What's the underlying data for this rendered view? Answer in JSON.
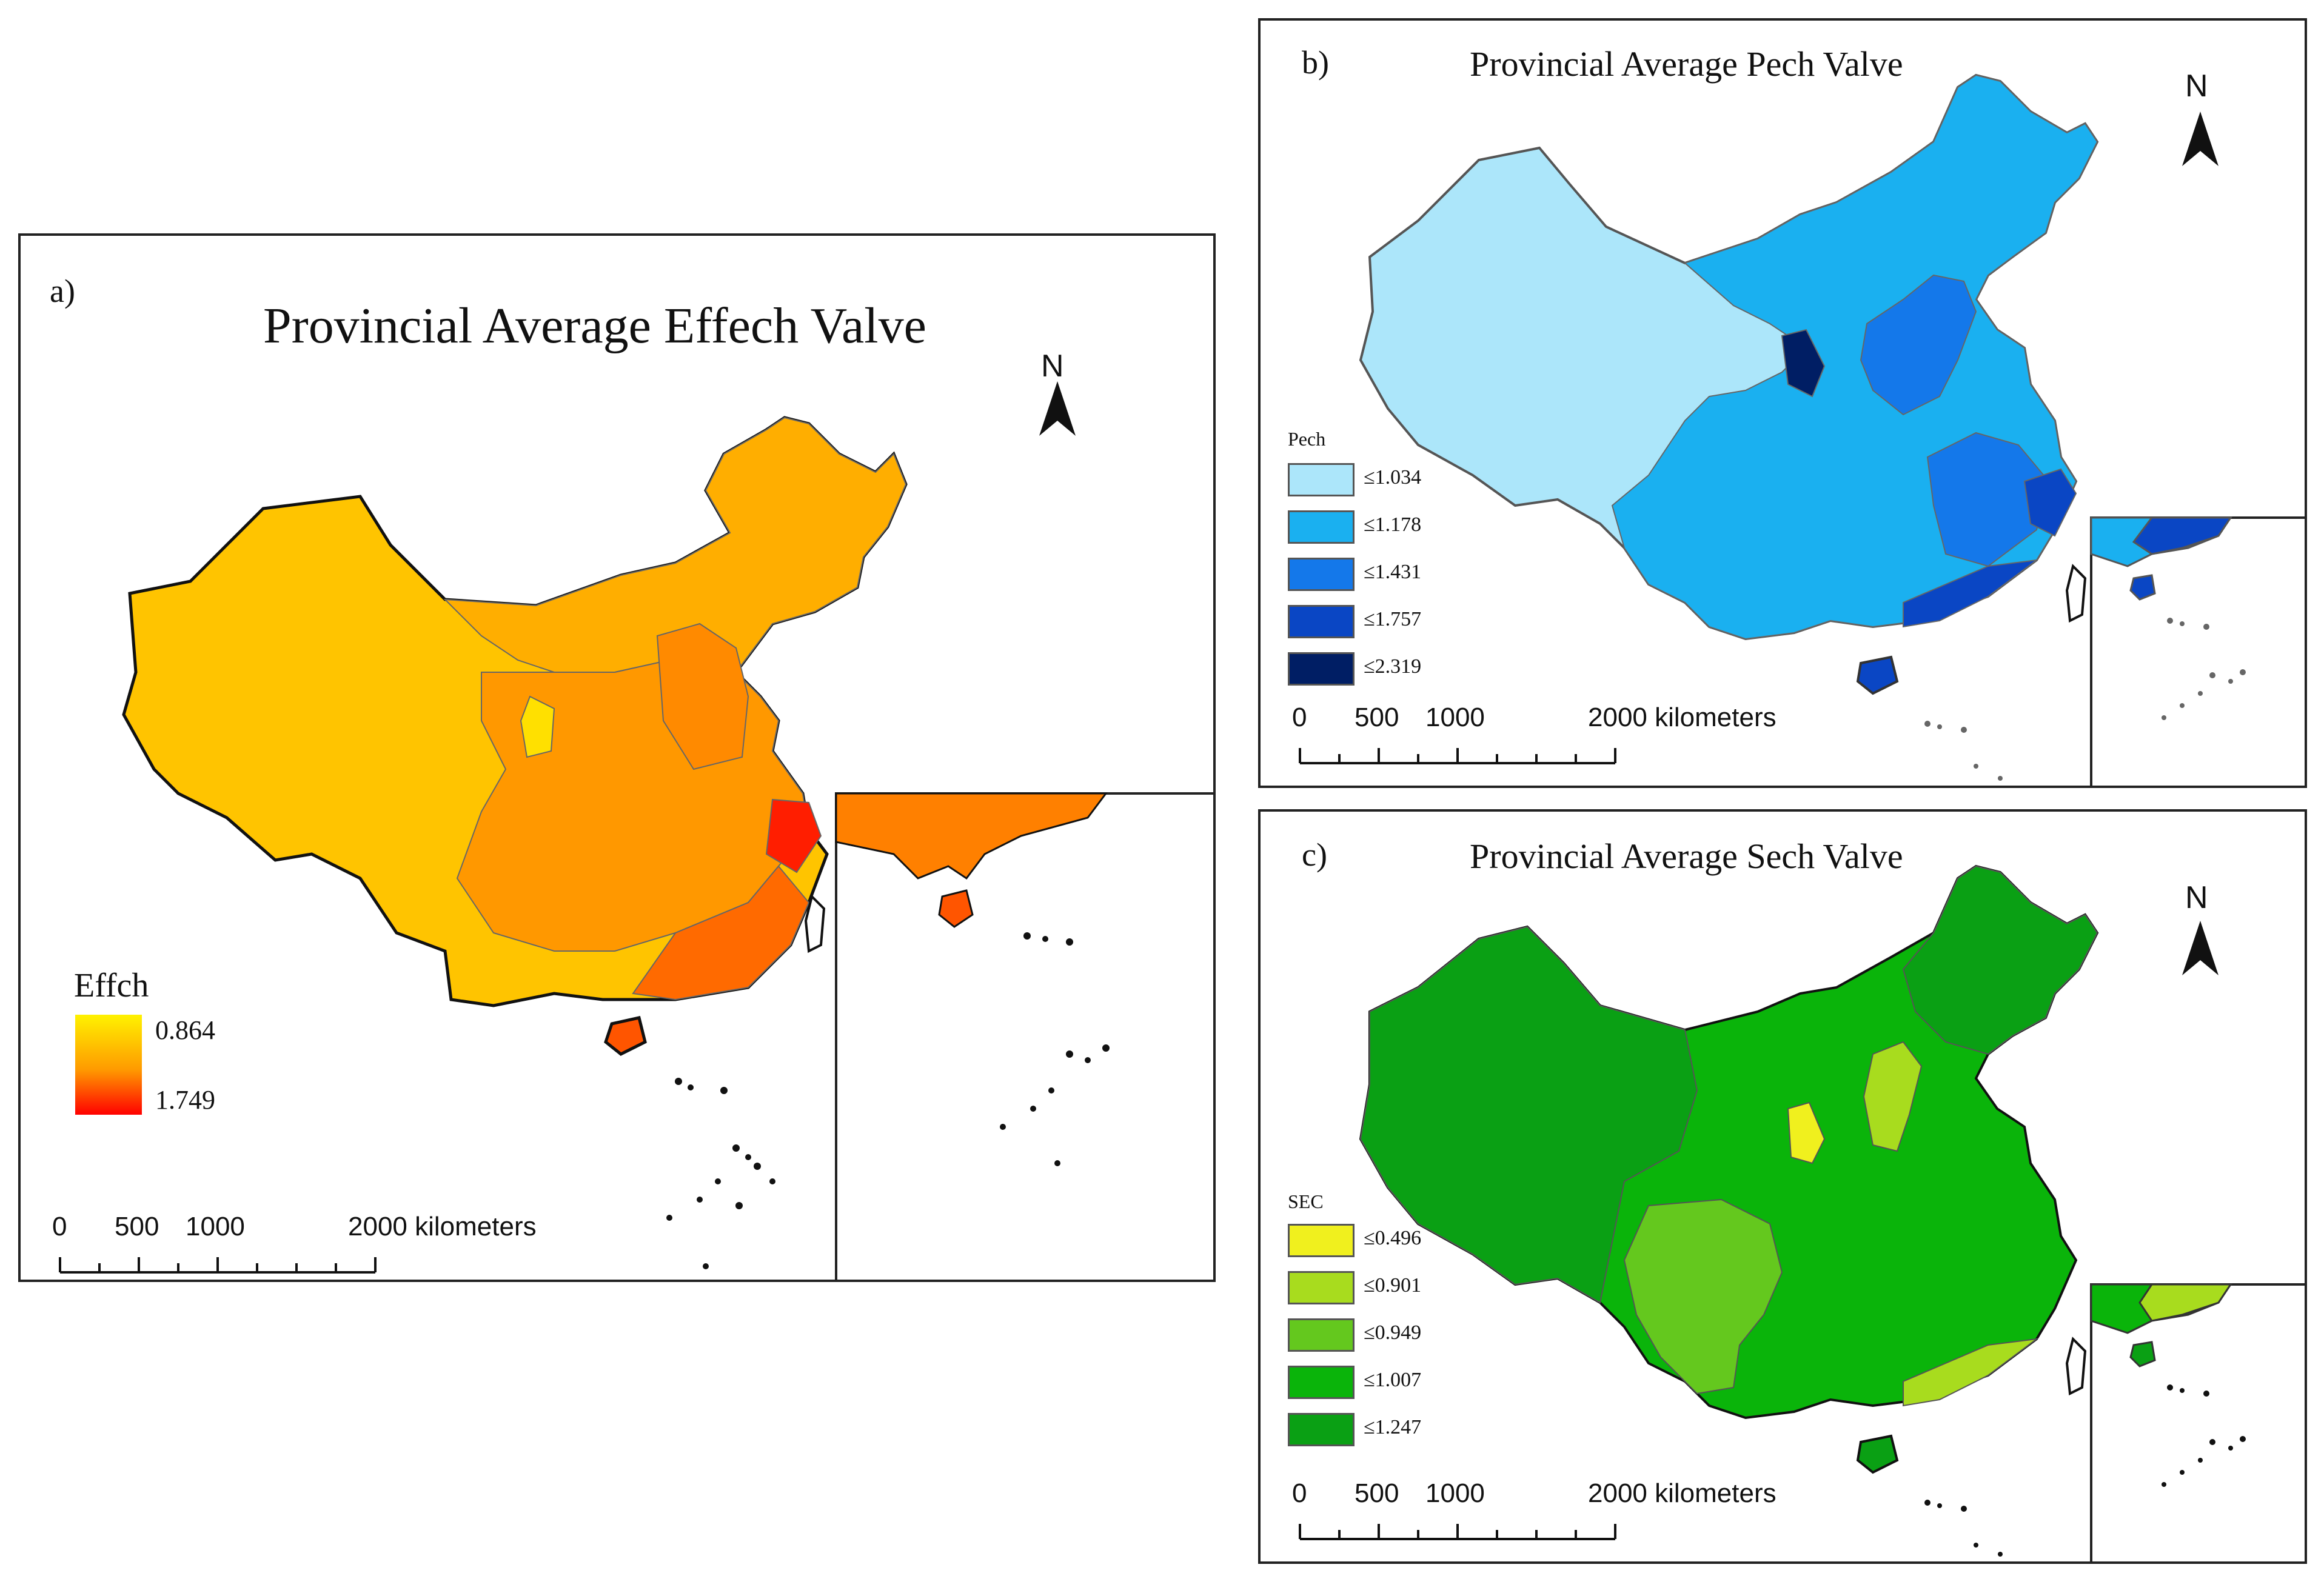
{
  "panel_a": {
    "letter": "a)",
    "title": "Provincial Average Effech Valve",
    "north": "N",
    "legend": {
      "title": "Effch",
      "min": "0.864",
      "max": "1.749",
      "colors": {
        "low": "#FFF200",
        "high": "#FF0000"
      }
    },
    "scale": {
      "ticks": [
        "0",
        "500",
        "1000"
      ],
      "end": "2000 kilometers"
    }
  },
  "panel_b": {
    "letter": "b)",
    "title": "Provincial Average Pech Valve",
    "north": "N",
    "legend": {
      "title": "Pech",
      "classes": [
        {
          "label": "≤1.034",
          "color": "#ACE6FA"
        },
        {
          "label": "≤1.178",
          "color": "#1AB0F0"
        },
        {
          "label": "≤1.431",
          "color": "#1478EA"
        },
        {
          "label": "≤1.757",
          "color": "#0A46C4"
        },
        {
          "label": "≤2.319",
          "color": "#001E64"
        }
      ]
    },
    "scale": {
      "ticks": [
        "0",
        "500",
        "1000"
      ],
      "end": "2000 kilometers"
    }
  },
  "panel_c": {
    "letter": "c)",
    "title": "Provincial Average Sech Valve",
    "north": "N",
    "legend": {
      "title": "SEC",
      "classes": [
        {
          "label": "≤0.496",
          "color": "#F0F01E"
        },
        {
          "label": "≤0.901",
          "color": "#A8DC1E"
        },
        {
          "label": "≤0.949",
          "color": "#64C81E"
        },
        {
          "label": "≤1.007",
          "color": "#0AB40A"
        },
        {
          "label": "≤1.247",
          "color": "#0AA014"
        }
      ]
    },
    "scale": {
      "ticks": [
        "0",
        "500",
        "1000"
      ],
      "end": "2000 kilometers"
    }
  }
}
